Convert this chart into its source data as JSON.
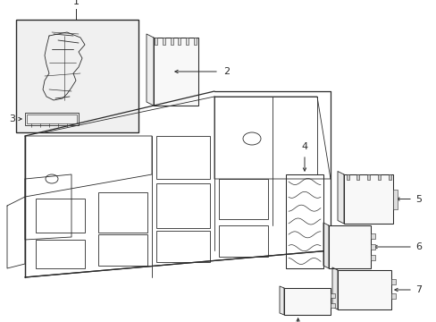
{
  "bg_color": "#ffffff",
  "line_color": "#2a2a2a",
  "label_color": "#000000",
  "fig_width": 4.89,
  "fig_height": 3.6,
  "dpi": 100
}
